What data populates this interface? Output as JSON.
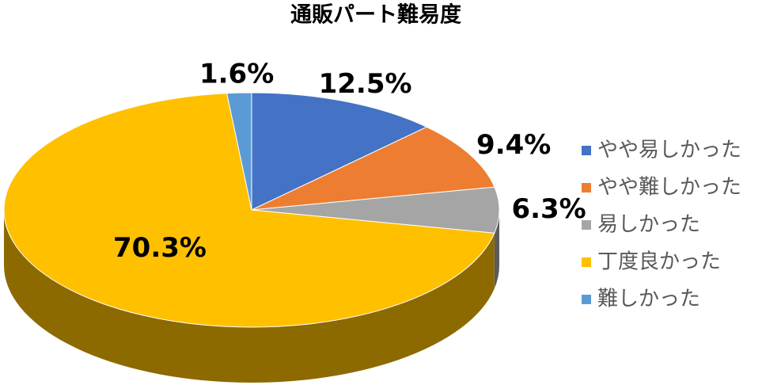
{
  "chart_data": {
    "type": "pie",
    "title": "通販パート難易度",
    "categories": [
      "やや易しかった",
      "やや難しかった",
      "易しかった",
      "丁度良かった",
      "難しかった"
    ],
    "values": [
      12.5,
      9.4,
      6.3,
      70.3,
      1.6
    ],
    "value_labels": [
      "12.5%",
      "9.4%",
      "6.3%",
      "70.3%",
      "1.6%"
    ],
    "colors": [
      "#4472c4",
      "#ed7d31",
      "#a5a5a5",
      "#ffc000",
      "#5b9bd5"
    ],
    "legend": "right"
  }
}
